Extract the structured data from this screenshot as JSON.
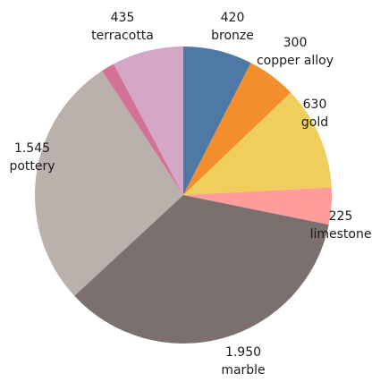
{
  "chart_data": {
    "type": "pie",
    "title": "",
    "start_angle_deg": 0,
    "direction": "clockwise",
    "slices": [
      {
        "label": "bronze",
        "value": 420,
        "value_text": "420",
        "color": "#4e79a7"
      },
      {
        "label": "copper alloy",
        "value": 300,
        "value_text": "300",
        "color": "#f28e2b"
      },
      {
        "label": "gold",
        "value": 630,
        "value_text": "630",
        "color": "#f0ce5e"
      },
      {
        "label": "limestone",
        "value": 225,
        "value_text": "225",
        "color": "#ff9d9a"
      },
      {
        "label": "marble",
        "value": 1950,
        "value_text": "1.950",
        "color": "#7b706e"
      },
      {
        "label": "pottery",
        "value": 1545,
        "value_text": "1.545",
        "color": "#bab0ac"
      },
      {
        "label": "",
        "value": 80,
        "value_text": "",
        "color": "#d37295"
      },
      {
        "label": "terracotta",
        "value": 435,
        "value_text": "435",
        "color": "#d4a6c8"
      }
    ]
  }
}
